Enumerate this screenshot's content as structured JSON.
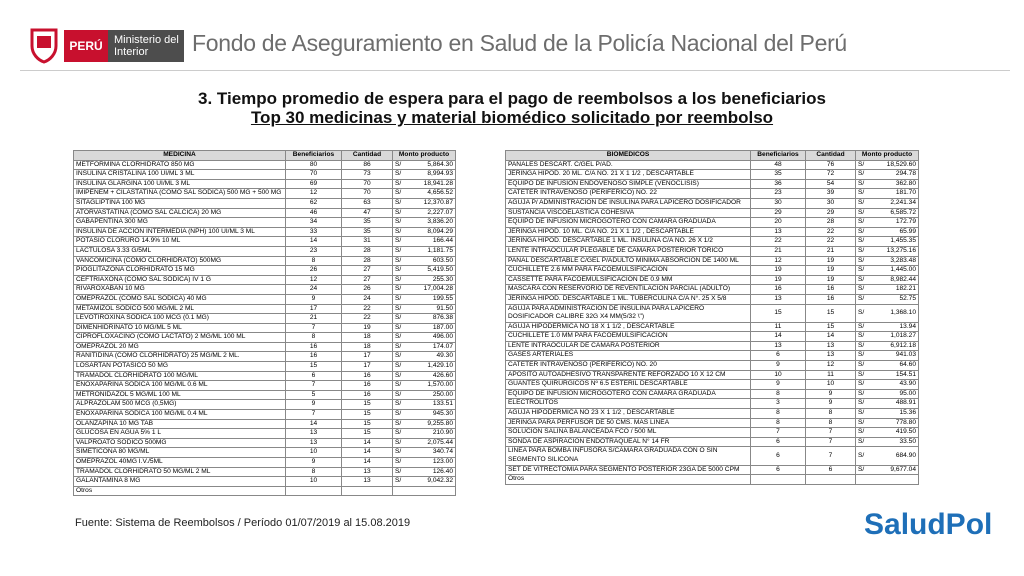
{
  "header": {
    "logo_country": "PERÚ",
    "logo_ministry": "Ministerio del Interior",
    "title": "Fondo de Aseguramiento en Salud de la Policía Nacional del Perú"
  },
  "slide": {
    "title": "3. Tiempo promedio de espera para el pago de reembolsos a los beneficiarios",
    "subtitle": "Top 30 medicinas y material biomédico solicitado por reembolso"
  },
  "tables": [
    {
      "headers": [
        "MEDICINA",
        "Beneficiarios",
        "Cantidad",
        "Monto producto"
      ],
      "rows": [
        [
          "METFORMINA CLORHIDRATO 850 MG",
          "80",
          "86",
          "S/",
          "5,864.30"
        ],
        [
          "INSULINA CRISTALINA 100 UI/ML 3 ML",
          "70",
          "73",
          "S/",
          "8,994.93"
        ],
        [
          "INSULINA  GLARGINA 100 UI/ML 3 ML",
          "69",
          "70",
          "S/",
          "18,941.28"
        ],
        [
          "IMIPENEM + CILASTATINA (COMO SAL SÓDICA) 500 MG + 500 MG",
          "12",
          "70",
          "S/",
          "4,656.52"
        ],
        [
          "SITAGLIPTINA 100 MG",
          "62",
          "63",
          "S/",
          "12,370.87"
        ],
        [
          "ATORVASTATINA (COMO SAL CÁLCICA) 20 MG",
          "46",
          "47",
          "S/",
          "2,227.07"
        ],
        [
          "GABAPENTINA 300 MG",
          "34",
          "35",
          "S/",
          "3,836.20"
        ],
        [
          "INSULINA DE ACCION INTERMEDIA (NPH) 100 UI/ML 3 ML",
          "33",
          "35",
          "S/",
          "8,094.29"
        ],
        [
          "POTASIO CLORURO 14.9% 10 ML",
          "14",
          "31",
          "S/",
          "166.44"
        ],
        [
          "LACTULOSA 3.33 G/5ML",
          "23",
          "28",
          "S/",
          "1,181.75"
        ],
        [
          "VANCOMICINA (COMO CLORHIDRATO) 500MG",
          "8",
          "28",
          "S/",
          "603.50"
        ],
        [
          "PIOGLITAZONA CLORHIDRATO 15 MG",
          "26",
          "27",
          "S/",
          "5,419.50"
        ],
        [
          "CEFTRIAXONA (COMO SAL SÓDICA) IV 1 G",
          "12",
          "27",
          "S/",
          "255.30"
        ],
        [
          "RIVAROXABAN 10 MG",
          "24",
          "26",
          "S/",
          "17,004.28"
        ],
        [
          "OMEPRAZOL (COMO SAL SÓDICA) 40 MG",
          "9",
          "24",
          "S/",
          "199.55"
        ],
        [
          "METAMIZOL SODICO 500 MG/ML 2 ML",
          "17",
          "22",
          "S/",
          "91.50"
        ],
        [
          "LEVOTIROXINA SODICA 100 MCG (0.1 MG)",
          "21",
          "22",
          "S/",
          "876.38"
        ],
        [
          "DIMENHIDRINATO 10 MG/ML 5 ML",
          "7",
          "19",
          "S/",
          "187.00"
        ],
        [
          "CIPROFLOXACINO (COMO LACTATO) 2 MG/ML 100 ML",
          "8",
          "18",
          "S/",
          "496.00"
        ],
        [
          "OMEPRAZOL 20 MG",
          "16",
          "18",
          "S/",
          "174.07"
        ],
        [
          "RANITIDINA (COMO CLORHIDRATO) 25 MG/ML 2 ML.",
          "16",
          "17",
          "S/",
          "49.30"
        ],
        [
          "LOSARTAN POTASICO 50 MG",
          "15",
          "17",
          "S/",
          "1,429.10"
        ],
        [
          "TRAMADOL CLORHIDRATO 100 MG/ML",
          "6",
          "16",
          "S/",
          "426.60"
        ],
        [
          "ENOXAPARINA SODICA 100 MG/ML 0.6 ML",
          "7",
          "16",
          "S/",
          "1,570.00"
        ],
        [
          "METRONIDAZOL 5 MG/ML 100 ML",
          "5",
          "16",
          "S/",
          "250.00"
        ],
        [
          "ALPRAZOLAM 500 MCG (0,5MG)",
          "9",
          "15",
          "S/",
          "133.51"
        ],
        [
          "ENOXAPARINA SODICA 100 MG/ML 0.4 ML",
          "7",
          "15",
          "S/",
          "945.30"
        ],
        [
          "OLANZAPINA 10 MG TAB",
          "14",
          "15",
          "S/",
          "9,255.80"
        ],
        [
          "GLUCOSA EN AGUA 5% 1 L",
          "13",
          "15",
          "S/",
          "210.90"
        ],
        [
          "VALPROATO SODICO 500MG",
          "13",
          "14",
          "S/",
          "2,075.44"
        ],
        [
          "SIMETICONA 80 MG/ML",
          "10",
          "14",
          "S/",
          "340.74"
        ],
        [
          "OMEPRAZOL 40MG I.V./5ML",
          "9",
          "14",
          "S/",
          "123.00"
        ],
        [
          "TRAMADOL CLORHIDRATO 50 MG/ML 2 ML",
          "8",
          "13",
          "S/",
          "126.40"
        ],
        [
          "GALANTAMINA 8 MG",
          "10",
          "13",
          "S/",
          "9,042.32"
        ],
        [
          "Otros"
        ]
      ]
    },
    {
      "headers": [
        "BIOMÉDICOS",
        "Beneficiarios",
        "Cantidad",
        "Monto producto"
      ],
      "rows": [
        [
          "PAÑALES DESCART. C/GEL P/AD.",
          "48",
          "76",
          "S/",
          "18,529.60"
        ],
        [
          "JERINGA HIPOD. 20 ML. C/A NO. 21 X 1 1/2 , DESCARTABLE",
          "35",
          "72",
          "S/",
          "294.78"
        ],
        [
          "EQUIPO DE INFUSION ENDOVENOSO SIMPLE (VENOCLISIS)",
          "36",
          "54",
          "S/",
          "362.80"
        ],
        [
          "CATETER INTRAVENOSO (PERIFERICO) NO. 22",
          "23",
          "39",
          "S/",
          "181.70"
        ],
        [
          "AGUJA P/ ADMINISTRACION DE INSULINA PARA LAPICERO DOSIFICADOR",
          "30",
          "30",
          "S/",
          "2,241.34"
        ],
        [
          "SUSTANCIA VISCOELASTICA COHESIVA",
          "29",
          "29",
          "S/",
          "6,585.72"
        ],
        [
          "EQUIPO DE INFUSION MICROGOTERO CON CAMARA GRADUADA",
          "20",
          "28",
          "S/",
          "172.79"
        ],
        [
          "JERINGA HIPOD. 10 ML. C/A NO. 21 X 1 1/2 , DESCARTABLE",
          "13",
          "22",
          "S/",
          "65.99"
        ],
        [
          "JERINGA HIPOD. DESCARTABLE 1 ML. INSULINA C/A NO. 26 X 1/2",
          "22",
          "22",
          "S/",
          "1,455.35"
        ],
        [
          "LENTE INTRAOCULAR PLEGABLE DE CAMARA POSTERIOR TORICO",
          "21",
          "21",
          "S/",
          "13,275.16"
        ],
        [
          "PAÑAL DESCARTABLE C/GEL P/ADULTO MINIMA ABSORCION DE 1400 ML",
          "12",
          "19",
          "S/",
          "3,283.48"
        ],
        [
          "CUCHILLETE 2.6 MM PARA FACOEMULSIFICACION",
          "19",
          "19",
          "S/",
          "1,445.00"
        ],
        [
          "CASSETTE PARA FACOEMULSIFICACION DE 0.9 MM",
          "19",
          "19",
          "S/",
          "8,982.44"
        ],
        [
          "MASCARA CON RESERVORIO DE REVENTILACIÓN PARCIAL (ADULTO)",
          "16",
          "16",
          "S/",
          "182.21"
        ],
        [
          "JERINGA HIPOD. DESCARTABLE 1 ML. TUBERCULINA C/A N°. 25 X 5/8",
          "13",
          "16",
          "S/",
          "52.75"
        ],
        [
          "AGUJA PARA ADMINISTRACION DE INSULINA PARA LAPICERO DOSIFICADOR CALIBRE 32G X4 MM(5/32 \\\")",
          "15",
          "15",
          "S/",
          "1,368.10"
        ],
        [
          "AGUJA HIPODERMICA NO 18 X 1 1/2 , DESCARTABLE",
          "11",
          "15",
          "S/",
          "13.94"
        ],
        [
          "CUCHILLETE 1.0 MM PARA FACOEMULSIFICACION",
          "14",
          "14",
          "S/",
          "1,018.27"
        ],
        [
          "LENTE INTRAOCULAR DE CAMARA POSTERIOR",
          "13",
          "13",
          "S/",
          "6,912.18"
        ],
        [
          "GASES ARTERIALES",
          "6",
          "13",
          "S/",
          "941.03"
        ],
        [
          "CATETER INTRAVENOSO (PERIFERICO) NO. 20",
          "9",
          "12",
          "S/",
          "64.60"
        ],
        [
          "APOSITO AUTOADHESIVO TRANSPARENTE REFORZADO 10 X 12 CM",
          "10",
          "11",
          "S/",
          "154.51"
        ],
        [
          "GUANTES QUIRURGICOS Nº 6.5 ESTERIL DESCARTABLE",
          "9",
          "10",
          "S/",
          "43.90"
        ],
        [
          "EQUIPO DE INFUSION MICROGOTERO CON CAMARA GRADUADA",
          "8",
          "9",
          "S/",
          "95.00"
        ],
        [
          "ELECTROLITOS",
          "3",
          "9",
          "S/",
          "488.91"
        ],
        [
          "AGUJA HIPODERMICA NO 23 X 1 1/2 , DESCARTABLE",
          "8",
          "8",
          "S/",
          "15.36"
        ],
        [
          "JERINGA PARA PERFUSOR DE 50 CMS. MAS LINEA",
          "8",
          "8",
          "S/",
          "778.80"
        ],
        [
          "SOLUCION SALINA BALANCEADA FCO / 500 ML",
          "7",
          "7",
          "S/",
          "419.50"
        ],
        [
          "SONDA DE ASPIRACION ENDOTRAQUEAL N° 14 FR",
          "6",
          "7",
          "S/",
          "33.50"
        ],
        [
          "LINEA PARA BOMBA INFUSORA S/CAMARA GRADUADA CON O SIN SEGMENTO SILICONA",
          "6",
          "7",
          "S/",
          "684.90"
        ],
        [
          "SET DE VITRECTOMIA PARA SEGMENTO POSTERIOR 23GA DE 5000 CPM",
          "6",
          "6",
          "S/",
          "9,677.04"
        ],
        [
          "Otros"
        ]
      ]
    }
  ],
  "footer": {
    "source": "Fuente: Sistema de Reembolsos / Período 01/07/2019 al 15.08.2019",
    "logo": "SaludPol"
  }
}
